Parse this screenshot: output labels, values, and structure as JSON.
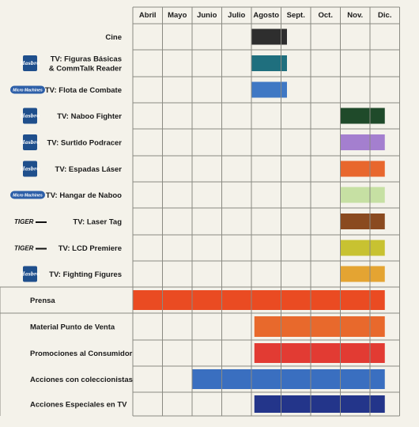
{
  "chart_data": {
    "type": "gantt",
    "months": [
      "Abril",
      "Mayo",
      "Junio",
      "Julio",
      "Agosto",
      "Sept.",
      "Oct.",
      "Nov.",
      "Dic."
    ],
    "rows": [
      {
        "label": [
          "Cine"
        ],
        "logo": "",
        "start": 5.0,
        "end": 6.2,
        "color": "#2e2e2e"
      },
      {
        "label": [
          "TV: Figuras Básicas",
          "& CommTalk Reader"
        ],
        "logo": "hasbro",
        "start": 5.0,
        "end": 6.2,
        "color": "#1f6f7e"
      },
      {
        "label": [
          "TV: Flota de Combate"
        ],
        "logo": "micromachines",
        "start": 5.0,
        "end": 6.2,
        "color": "#3f78c4"
      },
      {
        "label": [
          "TV: Naboo Fighter"
        ],
        "logo": "hasbro",
        "start": 8.0,
        "end": 9.5,
        "color": "#1f4a2a"
      },
      {
        "label": [
          "TV: Surtido Podracer"
        ],
        "logo": "hasbro",
        "start": 8.0,
        "end": 9.5,
        "color": "#a47fcf"
      },
      {
        "label": [
          "TV: Espadas Láser"
        ],
        "logo": "hasbro",
        "start": 8.0,
        "end": 9.5,
        "color": "#e8672d"
      },
      {
        "label": [
          "TV: Hangar de Naboo"
        ],
        "logo": "micromachines",
        "start": 8.0,
        "end": 9.5,
        "color": "#c6e0a3"
      },
      {
        "label": [
          "TV: Laser Tag"
        ],
        "logo": "tiger",
        "start": 8.0,
        "end": 9.5,
        "color": "#8a4a1f"
      },
      {
        "label": [
          "TV: LCD Premiere"
        ],
        "logo": "tiger",
        "start": 8.0,
        "end": 9.5,
        "color": "#c8c231"
      },
      {
        "label": [
          "TV: Fighting Figures"
        ],
        "logo": "hasbro",
        "start": 8.0,
        "end": 9.5,
        "color": "#e4a432"
      },
      {
        "label": [
          "Prensa"
        ],
        "logo": "",
        "start": 1.0,
        "end": 9.5,
        "color": "#ea4b22"
      },
      {
        "label": [
          "Material Punto de Venta"
        ],
        "logo": "",
        "start": 5.1,
        "end": 9.5,
        "color": "#e8692c"
      },
      {
        "label": [
          "Promociones al Consumidor"
        ],
        "logo": "",
        "start": 5.1,
        "end": 9.5,
        "color": "#e23b33"
      },
      {
        "label": [
          "Acciones con coleccionistas"
        ],
        "logo": "",
        "start": 3.0,
        "end": 9.5,
        "color": "#3a6fc0"
      },
      {
        "label": [
          "Acciones Especiales en TV"
        ],
        "logo": "",
        "start": 5.1,
        "end": 9.5,
        "color": "#23358a"
      }
    ],
    "logo_texts": {
      "hasbro": "Hasbro",
      "micromachines": "Micro Machines",
      "tiger": "TIGER"
    }
  }
}
